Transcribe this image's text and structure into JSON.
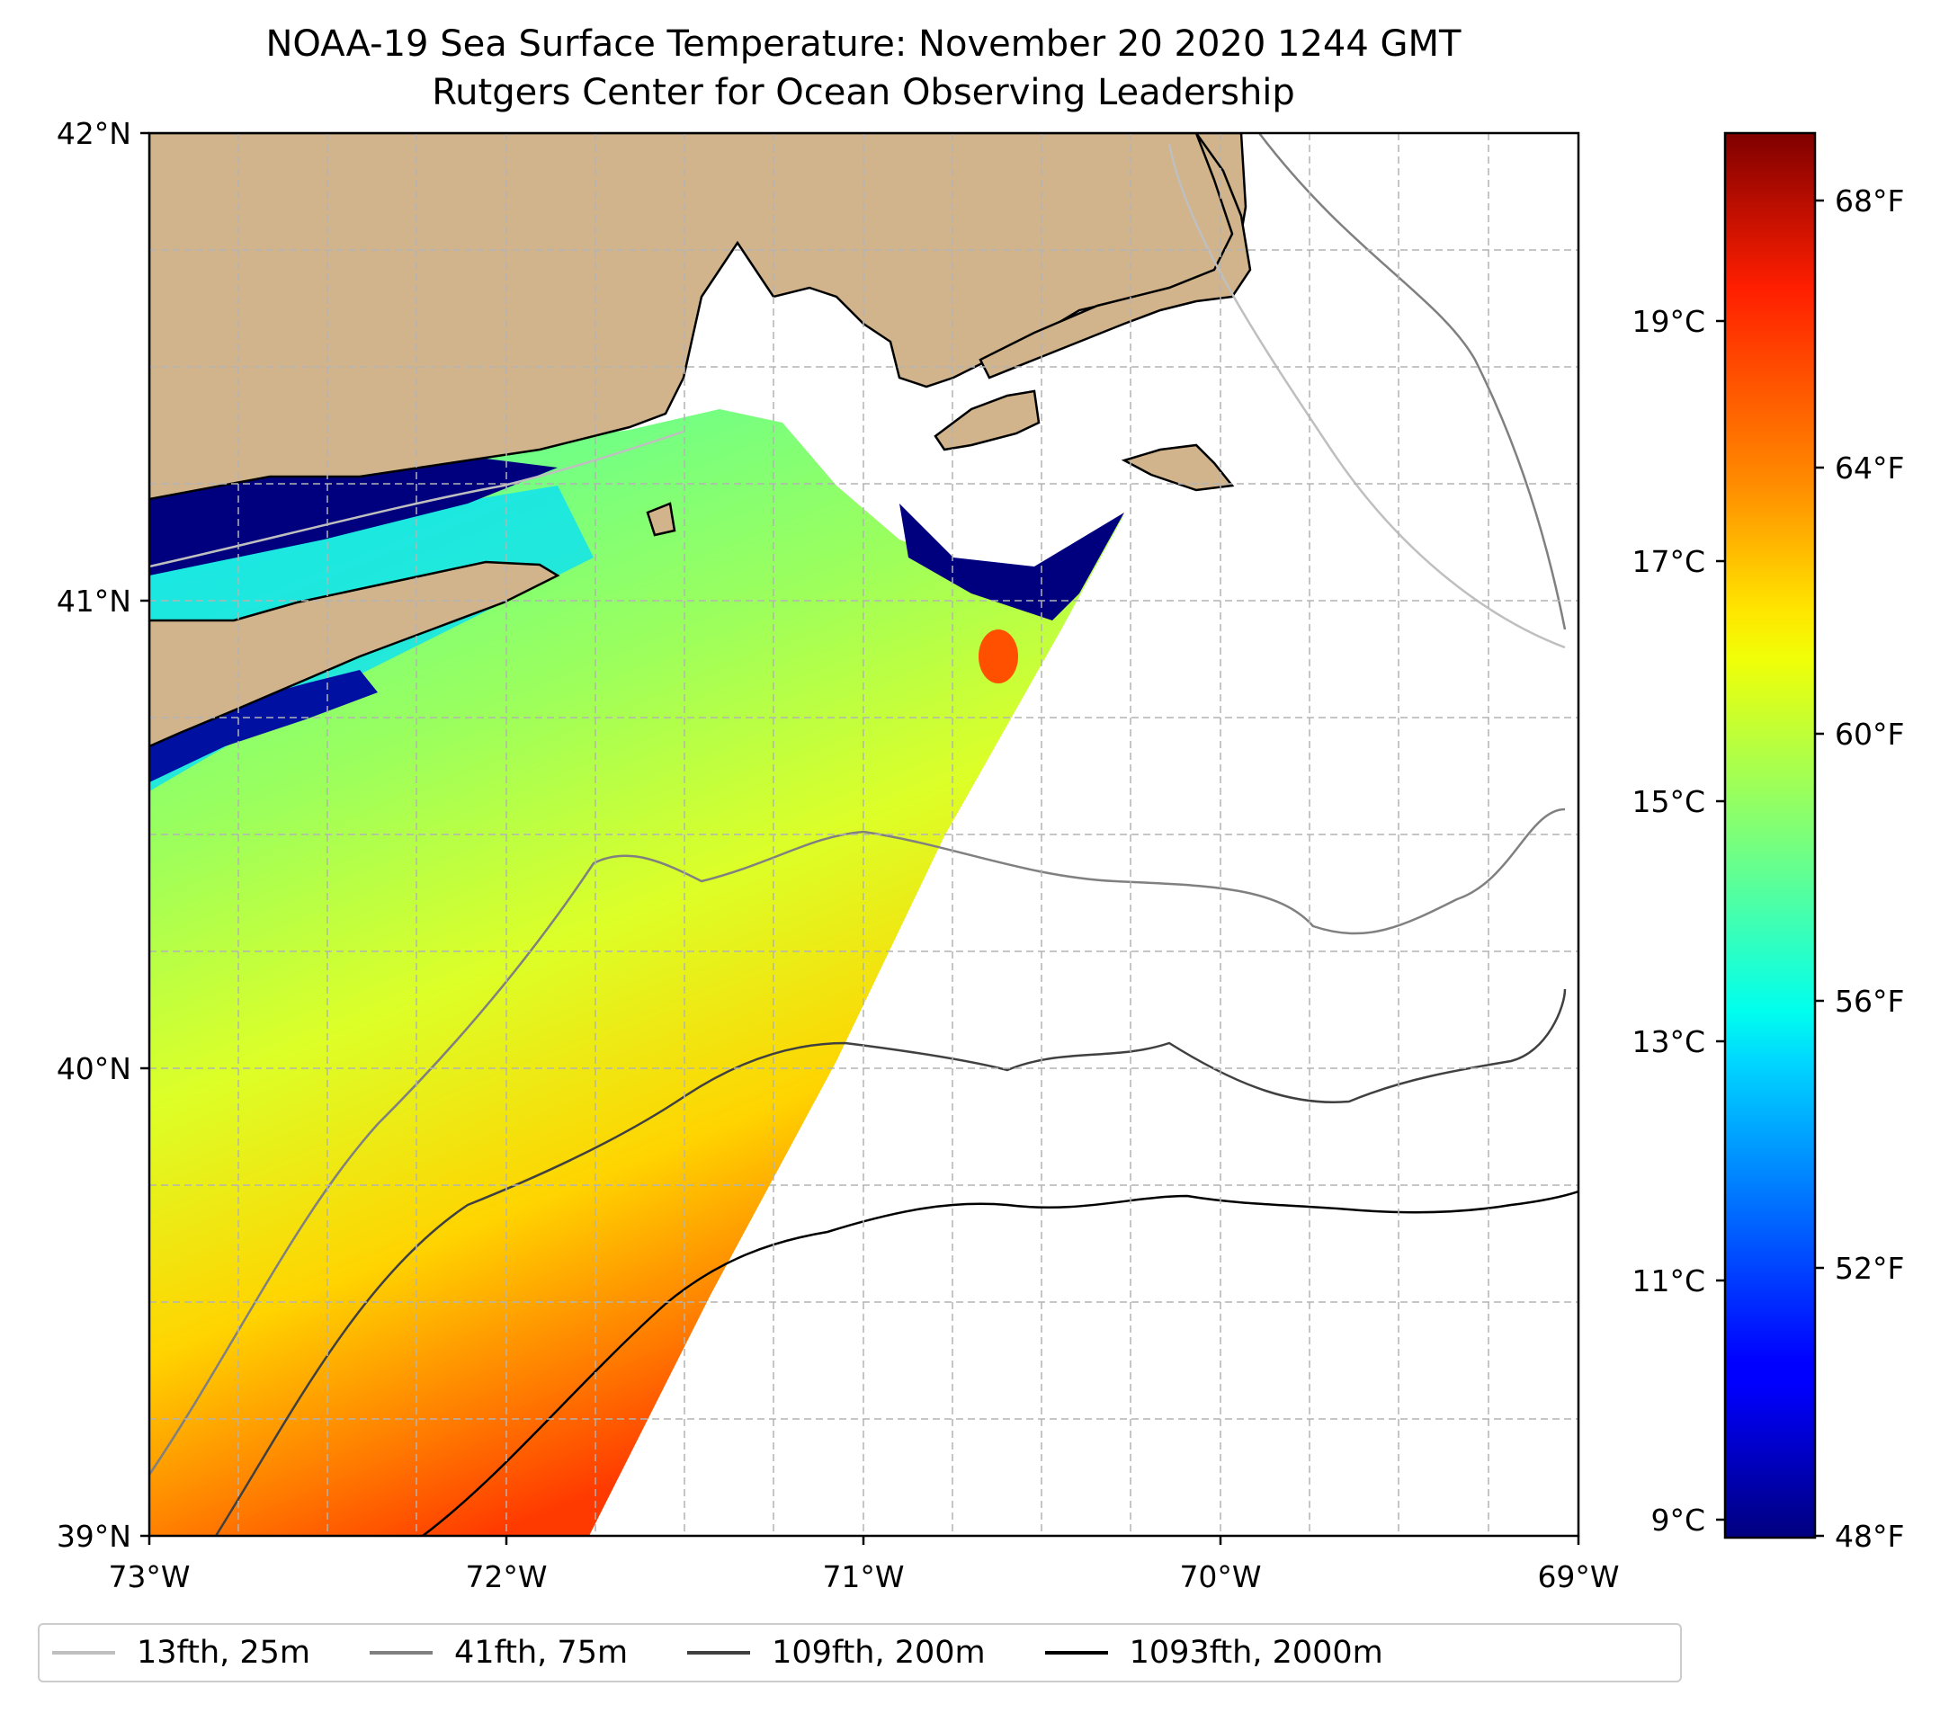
{
  "title": "NOAA-19 Sea Surface Temperature: November 20 2020 1244 GMT",
  "subtitle": "Rutgers Center for Ocean Observing Leadership",
  "map": {
    "lon_range": [
      -73,
      -69
    ],
    "lat_range": [
      39,
      42
    ],
    "lon_ticks": [
      "73°W",
      "72°W",
      "71°W",
      "70°W",
      "69°W"
    ],
    "lat_ticks": [
      "39°N",
      "40°N",
      "41°N",
      "42°N"
    ],
    "land_color": "#d2b48c",
    "grid_interval_deg": 0.25
  },
  "colorbar": {
    "range_f": [
      48,
      69
    ],
    "celsius_ticks": [
      "9°C",
      "11°C",
      "13°C",
      "15°C",
      "17°C",
      "19°C"
    ],
    "fahrenheit_ticks": [
      "48°F",
      "52°F",
      "56°F",
      "60°F",
      "64°F",
      "68°F"
    ],
    "colormap": "jet"
  },
  "legend": [
    {
      "label": "13fth, 25m",
      "color": "#bfbfbf"
    },
    {
      "label": "41fth, 75m",
      "color": "#808080"
    },
    {
      "label": "109fth, 200m",
      "color": "#404040"
    },
    {
      "label": "1093fth, 2000m",
      "color": "#000000"
    }
  ]
}
